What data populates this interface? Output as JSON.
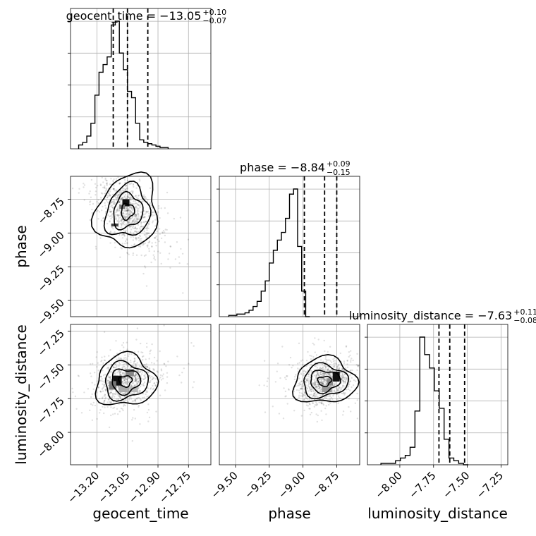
{
  "chart_data": {
    "type": "corner",
    "parameters": [
      "geocent_time",
      "phase",
      "luminosity_distance"
    ],
    "axes": {
      "geocent_time": {
        "label": "geocent_time",
        "range": [
          -13.33,
          -12.64
        ],
        "ticks": [
          -13.2,
          -13.05,
          -12.9,
          -12.75
        ],
        "tick_labels": [
          "−13.20",
          "−13.05",
          "−12.90",
          "−12.75"
        ]
      },
      "phase": {
        "label": "phase",
        "range": [
          -9.62,
          -8.58
        ],
        "ticks": [
          -9.5,
          -9.25,
          -9.0,
          -8.75
        ],
        "tick_labels": [
          "−9.50",
          "−9.25",
          "−9.00",
          "−8.75"
        ]
      },
      "luminosity_distance": {
        "label": "luminosity_distance",
        "range": [
          -8.24,
          -7.2
        ],
        "ticks": [
          -8.0,
          -7.75,
          -7.5,
          -7.25
        ],
        "tick_labels": [
          "−8.00",
          "−7.75",
          "−7.50",
          "−7.25"
        ]
      }
    },
    "titles": {
      "geocent_time": {
        "prefix": "geocent_time = −13.05",
        "plus": "+0.10",
        "minus": "−0.07"
      },
      "phase": {
        "prefix": "phase = −8.84",
        "plus": "+0.09",
        "minus": "−0.15"
      },
      "luminosity_distance": {
        "prefix": "luminosity_distance = −7.63",
        "plus": "+0.11",
        "minus": "−0.08"
      }
    },
    "marginals": {
      "geocent_time": {
        "bin_edges_start": -13.29,
        "bin_width": 0.02,
        "counts": [
          0.03,
          0.05,
          0.1,
          0.2,
          0.42,
          0.6,
          0.66,
          0.72,
          0.97,
          1.0,
          0.75,
          0.62,
          0.45,
          0.4,
          0.2,
          0.07,
          0.05,
          0.04,
          0.03,
          0.02,
          0.01,
          0.01
        ],
        "quantiles": [
          -13.12,
          -13.05,
          -12.95
        ]
      },
      "phase": {
        "bin_edges_start": -9.55,
        "bin_width": 0.03,
        "counts": [
          0.01,
          0.01,
          0.02,
          0.02,
          0.03,
          0.05,
          0.08,
          0.12,
          0.2,
          0.28,
          0.42,
          0.52,
          0.6,
          0.66,
          0.77,
          0.96,
          1.0,
          0.55,
          0.2,
          0.0
        ],
        "quantiles": [
          -8.99,
          -8.84,
          -8.75
        ]
      },
      "luminosity_distance": {
        "bin_edges_start": -8.14,
        "bin_width": 0.036,
        "counts": [
          0.01,
          0.01,
          0.01,
          0.03,
          0.05,
          0.07,
          0.13,
          0.4,
          0.95,
          0.82,
          0.72,
          0.55,
          0.42,
          0.19,
          0.05,
          0.03,
          0.01,
          0.0
        ],
        "quantiles": [
          -7.71,
          -7.63,
          -7.52
        ]
      }
    },
    "joint": {
      "phase_vs_geocent_time": {
        "center": [
          -13.05,
          -8.84
        ],
        "sigma": [
          0.07,
          0.13
        ],
        "correlation": -0.5
      },
      "luminosity_distance_vs_geocent_time": {
        "center": [
          -13.06,
          -7.62
        ],
        "sigma": [
          0.07,
          0.09
        ],
        "correlation": 0.25
      },
      "luminosity_distance_vs_phase": {
        "center": [
          -8.84,
          -7.62
        ],
        "sigma": [
          0.11,
          0.08
        ],
        "correlation": 0.2
      }
    },
    "grid": true
  }
}
